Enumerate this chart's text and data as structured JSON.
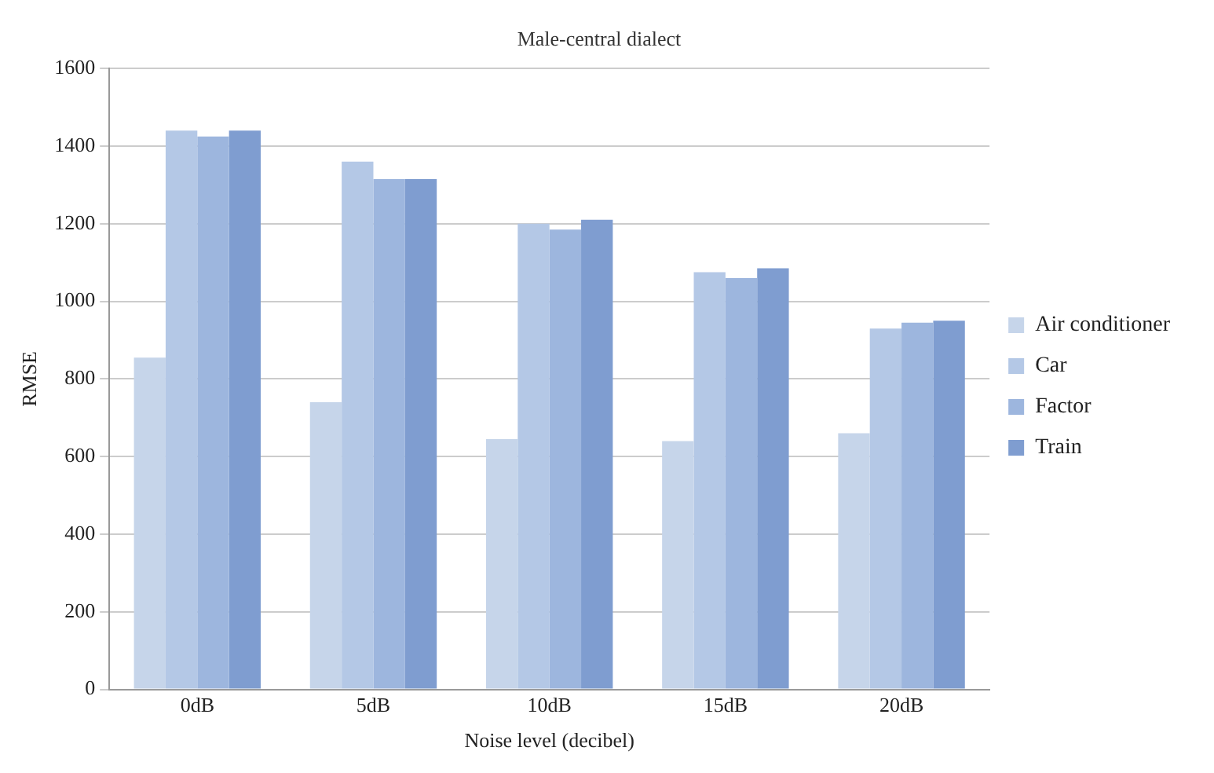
{
  "chart_data": {
    "type": "bar",
    "title": "Male-central dialect",
    "xlabel": "Noise level (decibel)",
    "ylabel": "RMSE",
    "categories": [
      "0dB",
      "5dB",
      "10dB",
      "15dB",
      "20dB"
    ],
    "series": [
      {
        "name": "Air conditioner",
        "color": "#c6d5ea",
        "values": [
          855,
          740,
          645,
          640,
          660
        ]
      },
      {
        "name": "Car",
        "color": "#b4c8e6",
        "values": [
          1440,
          1360,
          1200,
          1075,
          930
        ]
      },
      {
        "name": "Factor",
        "color": "#9db6de",
        "values": [
          1425,
          1315,
          1185,
          1060,
          945
        ]
      },
      {
        "name": "Train",
        "color": "#7f9dd0",
        "values": [
          1440,
          1315,
          1210,
          1085,
          950
        ]
      }
    ],
    "ylim": [
      0,
      1600
    ],
    "yticks": [
      0,
      200,
      400,
      600,
      800,
      1000,
      1200,
      1400,
      1600
    ],
    "grid": "y",
    "legend": "right"
  }
}
